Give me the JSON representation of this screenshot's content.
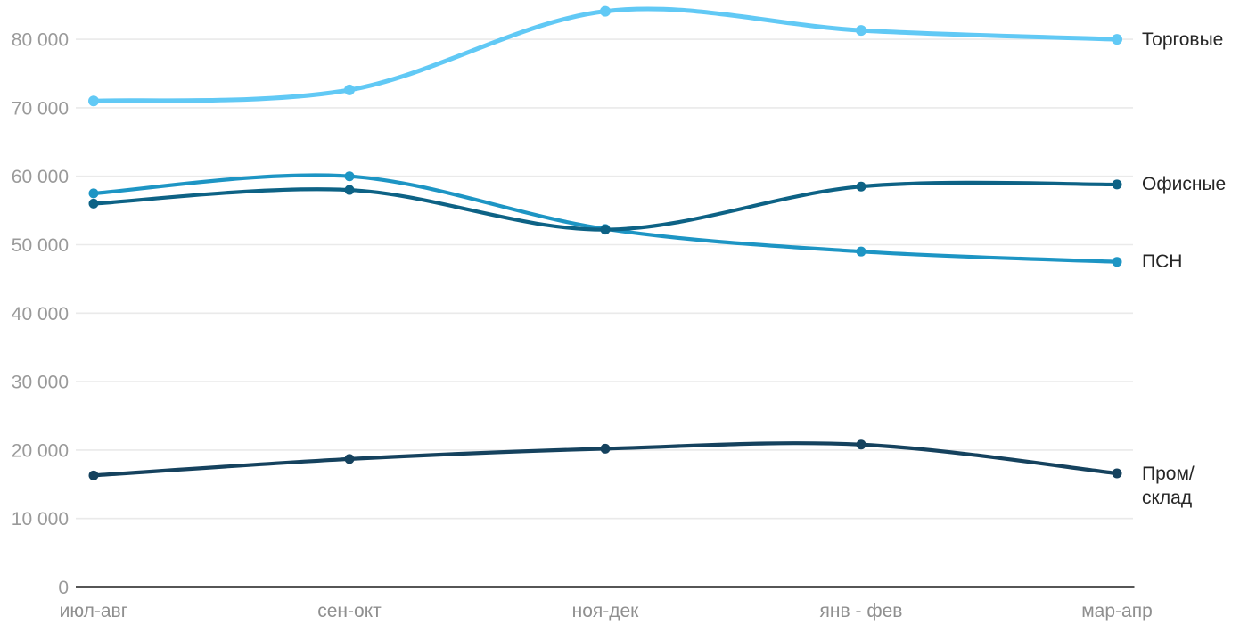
{
  "chart_data": {
    "type": "line",
    "smooth": true,
    "grid": true,
    "legend_position": "right-end-of-line",
    "categories": [
      "июл-авг",
      "сен-окт",
      "ноя-дек",
      "янв - фев",
      "мар-апр"
    ],
    "series": [
      {
        "name": "Торговые",
        "label": "Торговые",
        "color": "#61C9F5",
        "line_width": 5,
        "dot_radius": 6,
        "values": [
          71000,
          72600,
          84100,
          81300,
          80000
        ]
      },
      {
        "name": "ПСН",
        "label": "ПСН",
        "color": "#1D95C4",
        "line_width": 4.2,
        "dot_radius": 5.5,
        "values": [
          57500,
          60000,
          52300,
          49000,
          47500
        ]
      },
      {
        "name": "Офисные",
        "label": "Офисные",
        "color": "#0D6285",
        "line_width": 4.2,
        "dot_radius": 5.5,
        "values": [
          56000,
          58000,
          52200,
          58500,
          58800
        ]
      },
      {
        "name": "Пром/склад",
        "label": "Пром/\nсклад",
        "color": "#15425E",
        "line_width": 4.2,
        "dot_radius": 5.5,
        "values": [
          16300,
          18700,
          20200,
          20800,
          16600
        ]
      }
    ],
    "ylim": [
      0,
      85500
    ],
    "yticks": [
      {
        "value": 0,
        "label": "0"
      },
      {
        "value": 10000,
        "label": "10 000"
      },
      {
        "value": 20000,
        "label": "20 000"
      },
      {
        "value": 30000,
        "label": "30 000"
      },
      {
        "value": 40000,
        "label": "40 000"
      },
      {
        "value": 50000,
        "label": "50 000"
      },
      {
        "value": 60000,
        "label": "60 000"
      },
      {
        "value": 70000,
        "label": "70 000"
      },
      {
        "value": 80000,
        "label": "80 000"
      }
    ],
    "xlabel": "",
    "ylabel": "",
    "title": "",
    "colors": {
      "gridline": "#EAEAEA",
      "axis": "#1F1F1F",
      "y_tick_text": "#9A9A9A",
      "x_tick_text": "#8F8F8F",
      "series_label_text": "#262626",
      "background": "#FFFFFF"
    }
  }
}
